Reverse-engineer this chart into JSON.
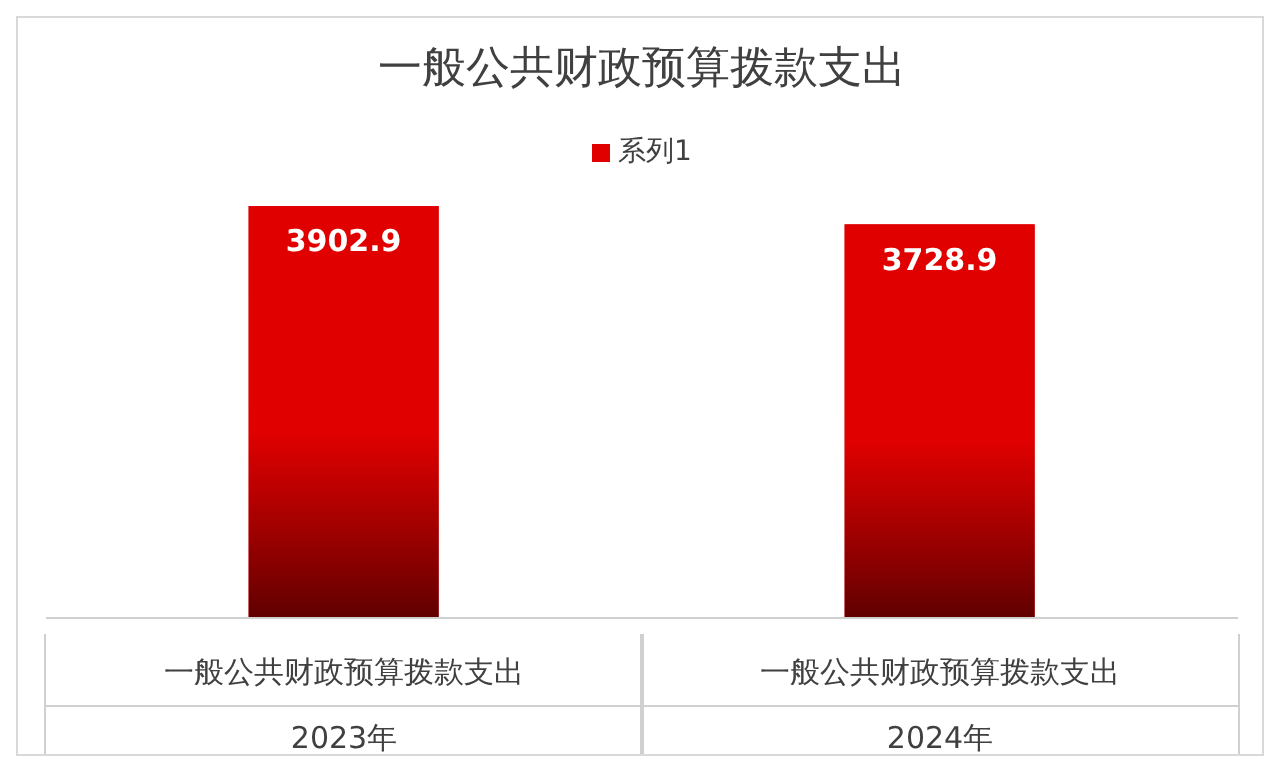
{
  "chart_data": {
    "type": "bar",
    "title": "一般公共财政预算拨款支出",
    "categories": [
      "一般公共财政预算拨款支出\n2023年",
      "一般公共财政预算拨款支出\n2024年"
    ],
    "series": [
      {
        "name": "系列1",
        "color": "#e00000",
        "values": [
          3902.9,
          3728.9
        ]
      }
    ],
    "data_labels": true,
    "legend": "top"
  }
}
